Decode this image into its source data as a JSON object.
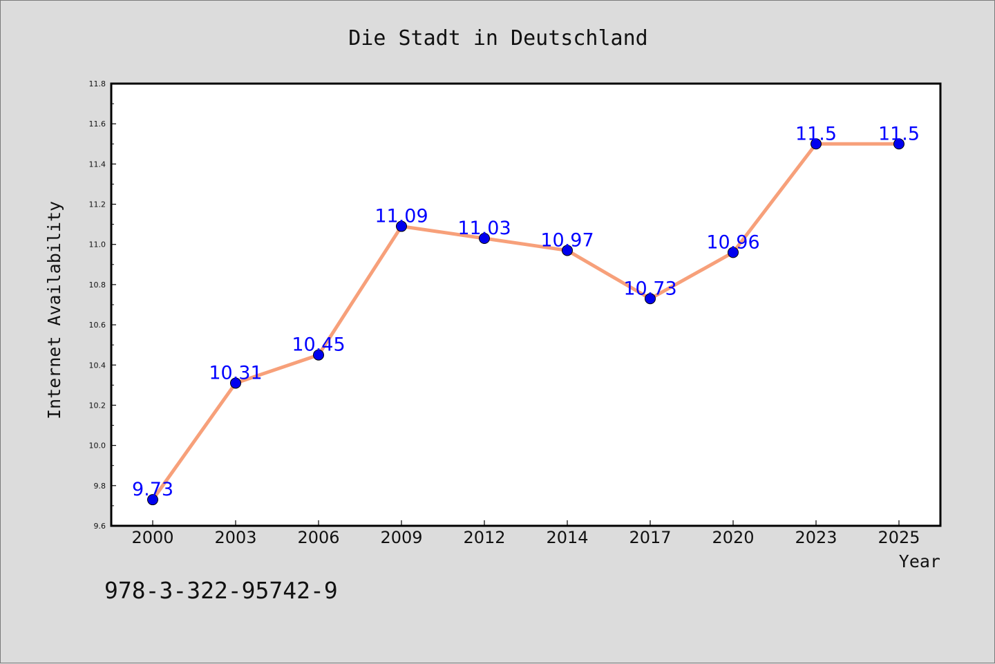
{
  "chart_data": {
    "type": "line",
    "title": "Die Stadt in Deutschland",
    "xlabel": "Year",
    "ylabel": "Internet Availability",
    "categories": [
      "2000",
      "2003",
      "2006",
      "2009",
      "2012",
      "2014",
      "2017",
      "2020",
      "2023",
      "2025"
    ],
    "series": [
      {
        "values": [
          9.73,
          10.31,
          10.45,
          11.09,
          11.03,
          10.97,
          10.73,
          10.96,
          11.5,
          11.5
        ]
      }
    ],
    "data_labels": [
      "9.73",
      "10.31",
      "10.45",
      "11.09",
      "11.03",
      "10.97",
      "10.73",
      "10.96",
      "11.5",
      "11.5"
    ],
    "ylim": [
      9.6,
      11.8
    ],
    "yticks": [
      "9.6",
      "9.8",
      "10.0",
      "10.2",
      "10.4",
      "10.6",
      "10.8",
      "11.0",
      "11.2",
      "11.4",
      "11.6",
      "11.8"
    ],
    "grid": false,
    "line_color": "#f7a07a",
    "marker_color": "#0000ee",
    "label_color": "#0000ff",
    "background_color": "#dcdcdc",
    "plot_background_color": "#ffffff"
  },
  "footer": {
    "isbn": "978-3-322-95742-9"
  }
}
